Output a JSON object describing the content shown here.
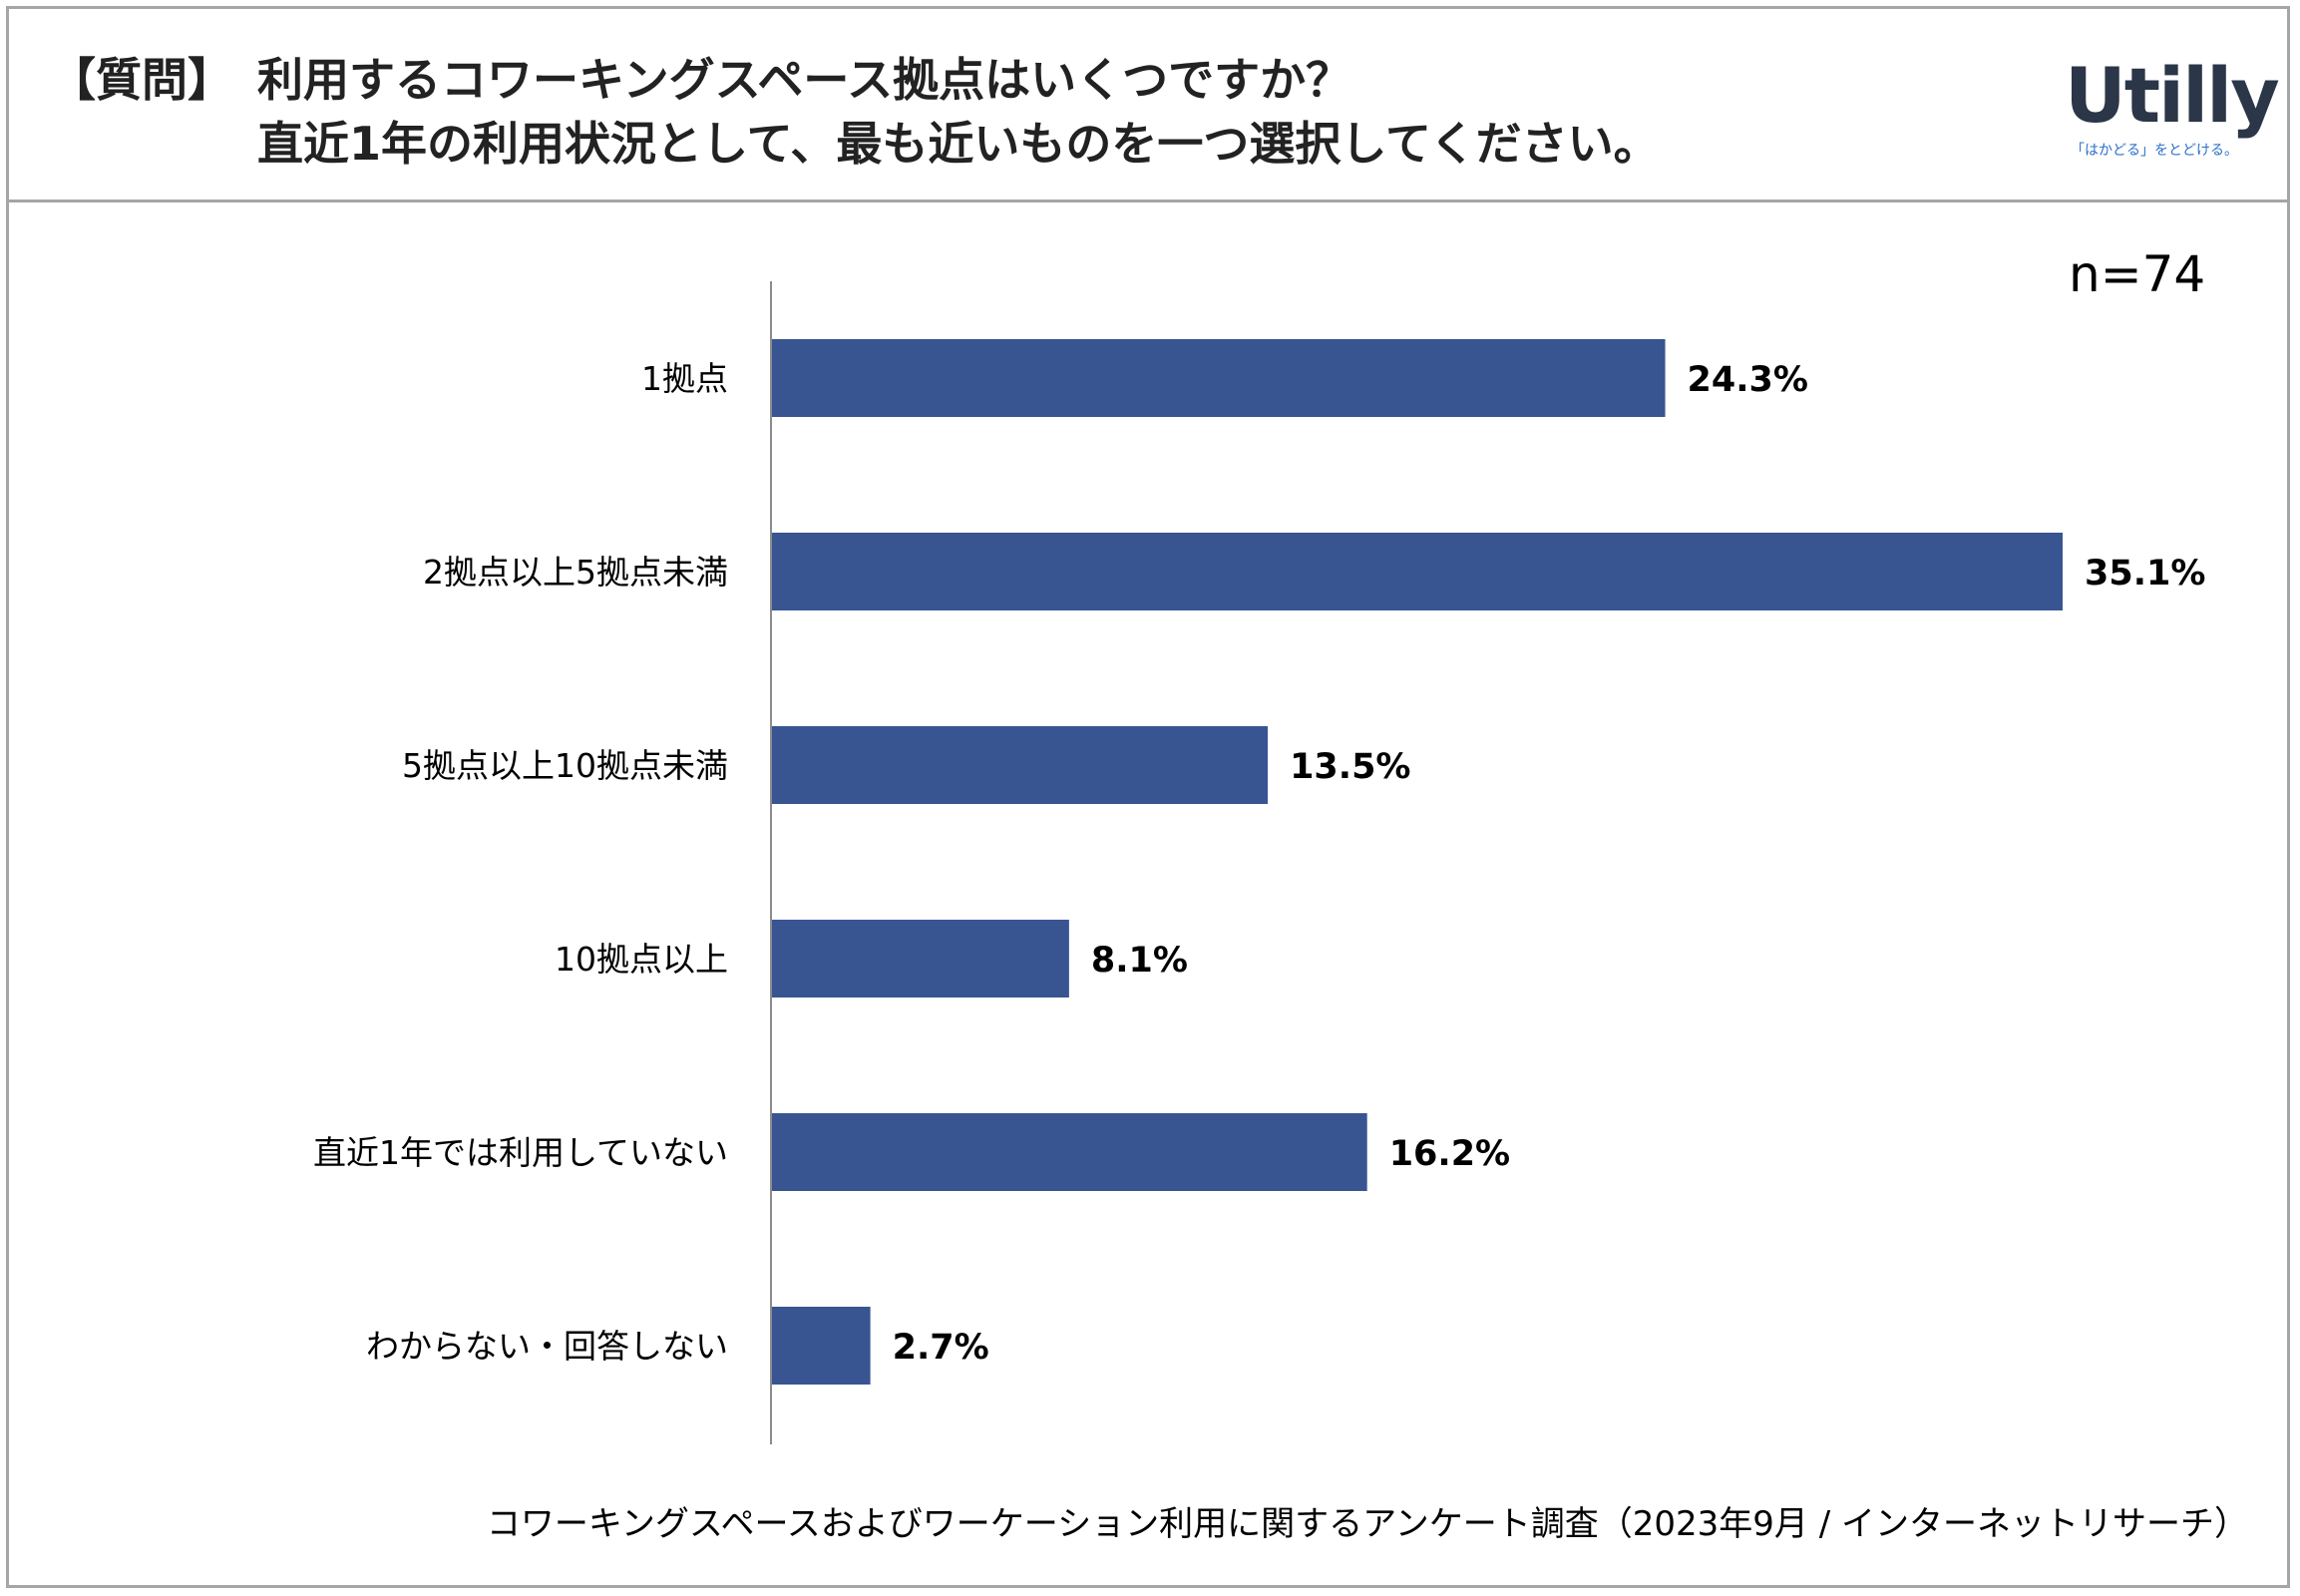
{
  "header": {
    "tag": "【質問】",
    "question_line1": "利用するコワーキングスペース拠点はいくつですか？",
    "question_line2": "直近1年の利用状況として、最も近いものを一つ選択してください。"
  },
  "logo": {
    "wordmark": "Utilly",
    "tagline": "「はかどる」をとどける。"
  },
  "sample_size": "n=74",
  "footer": "コワーキングスペースおよびワーケーション利用に関するアンケート調査（2023年9月 / インターネットリサーチ）",
  "colors": {
    "bar": "#385592",
    "axis": "#8c8c8c",
    "border": "#a6a6a6"
  },
  "chart_data": {
    "type": "bar",
    "orientation": "horizontal",
    "categories": [
      "1拠点",
      "2拠点以上5拠点未満",
      "5拠点以上10拠点未満",
      "10拠点以上",
      "直近1年では利用していない",
      "わからない・回答しない"
    ],
    "values": [
      24.3,
      35.1,
      13.5,
      8.1,
      16.2,
      2.7
    ],
    "value_labels": [
      "24.3%",
      "35.1%",
      "13.5%",
      "8.1%",
      "16.2%",
      "2.7%"
    ],
    "unit": "%",
    "xlim": [
      0,
      38
    ],
    "grid": false,
    "legend": "none"
  }
}
